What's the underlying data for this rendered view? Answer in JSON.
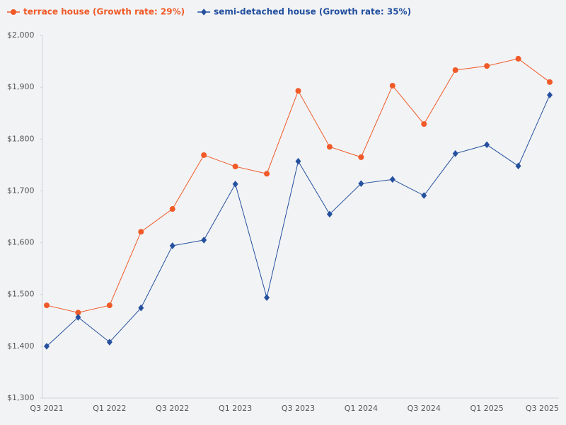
{
  "chart_data": {
    "type": "line",
    "categories": [
      "Q3 2021",
      null,
      "Q1 2022",
      null,
      "Q3 2022",
      null,
      "Q1 2023",
      null,
      "Q3 2023",
      null,
      "Q1 2024",
      null,
      "Q3 2024",
      null,
      "Q1 2025",
      null,
      "Q3 2025"
    ],
    "series": [
      {
        "name": "terrace house (Growth rate: 29%)",
        "color": "#f05a28",
        "marker": "circle",
        "values": [
          1479,
          1465,
          1479,
          1621,
          1665,
          1769,
          1747,
          1733,
          1893,
          1785,
          1765,
          1903,
          1829,
          1933,
          1941,
          1955,
          1910
        ]
      },
      {
        "name": "semi-detached house (Growth rate: 35%)",
        "color": "#24509e",
        "marker": "diamond",
        "values": [
          1400,
          1456,
          1408,
          1474,
          1594,
          1605,
          1713,
          1494,
          1757,
          1655,
          1714,
          1722,
          1691,
          1772,
          1789,
          1748,
          1885
        ]
      }
    ],
    "ylim": [
      1300,
      2000
    ],
    "yticks": [
      {
        "value": 1300,
        "label": "$1,300"
      },
      {
        "value": 1400,
        "label": "$1,400"
      },
      {
        "value": 1500,
        "label": "$1,500"
      },
      {
        "value": 1600,
        "label": "$1,600"
      },
      {
        "value": 1700,
        "label": "$1,700"
      },
      {
        "value": 1800,
        "label": "$1,800"
      },
      {
        "value": 1900,
        "label": "$1,900"
      },
      {
        "value": 2000,
        "label": "$2,000"
      }
    ],
    "grid": false,
    "legend": "top-left"
  }
}
